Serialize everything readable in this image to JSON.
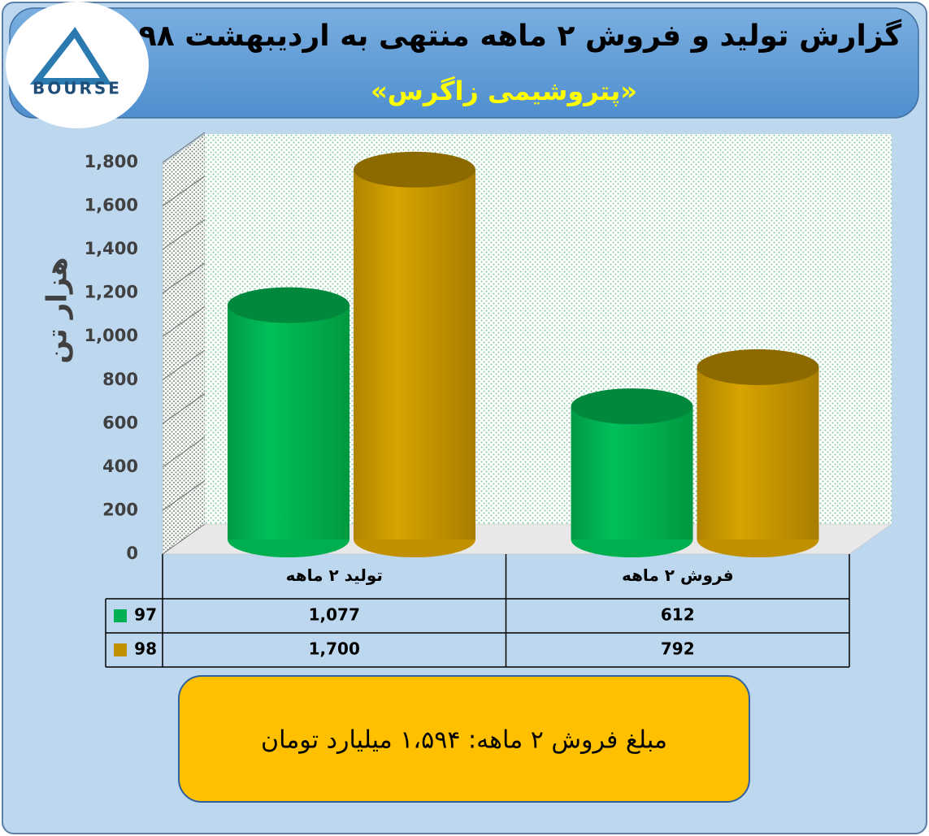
{
  "logo": "BOURSE",
  "chart_data": {
    "type": "bar",
    "title": "گزارش تولید و فروش ۲ ماهه منتهی به اردیبهشت ۹۸",
    "subtitle": "«پتروشیمی زاگرس»",
    "y_label": "هزار تن",
    "categories": [
      "تولید ۲ ماهه",
      "فروش ۲ ماهه"
    ],
    "series": [
      {
        "name": "97",
        "color": "#00b050",
        "values": [
          1077,
          612
        ],
        "value_labels": [
          "1,077",
          "612"
        ]
      },
      {
        "name": "98",
        "color": "#c09000",
        "values": [
          1700,
          792
        ],
        "value_labels": [
          "1,700",
          "792"
        ]
      }
    ],
    "ylim": [
      0,
      1800
    ],
    "yticks": [
      0,
      200,
      400,
      600,
      800,
      {
        "value": 1000,
        "label": "1,000"
      },
      {
        "value": 1200,
        "label": "1,200"
      },
      {
        "value": 1400,
        "label": "1,400"
      },
      {
        "value": 1600,
        "label": "1,600"
      },
      {
        "value": 1800,
        "label": "1,800"
      }
    ],
    "grid": true,
    "annotation": "مبلغ فروش ۲ ماهه: ۱،۵۹۴ میلیارد تومان"
  }
}
